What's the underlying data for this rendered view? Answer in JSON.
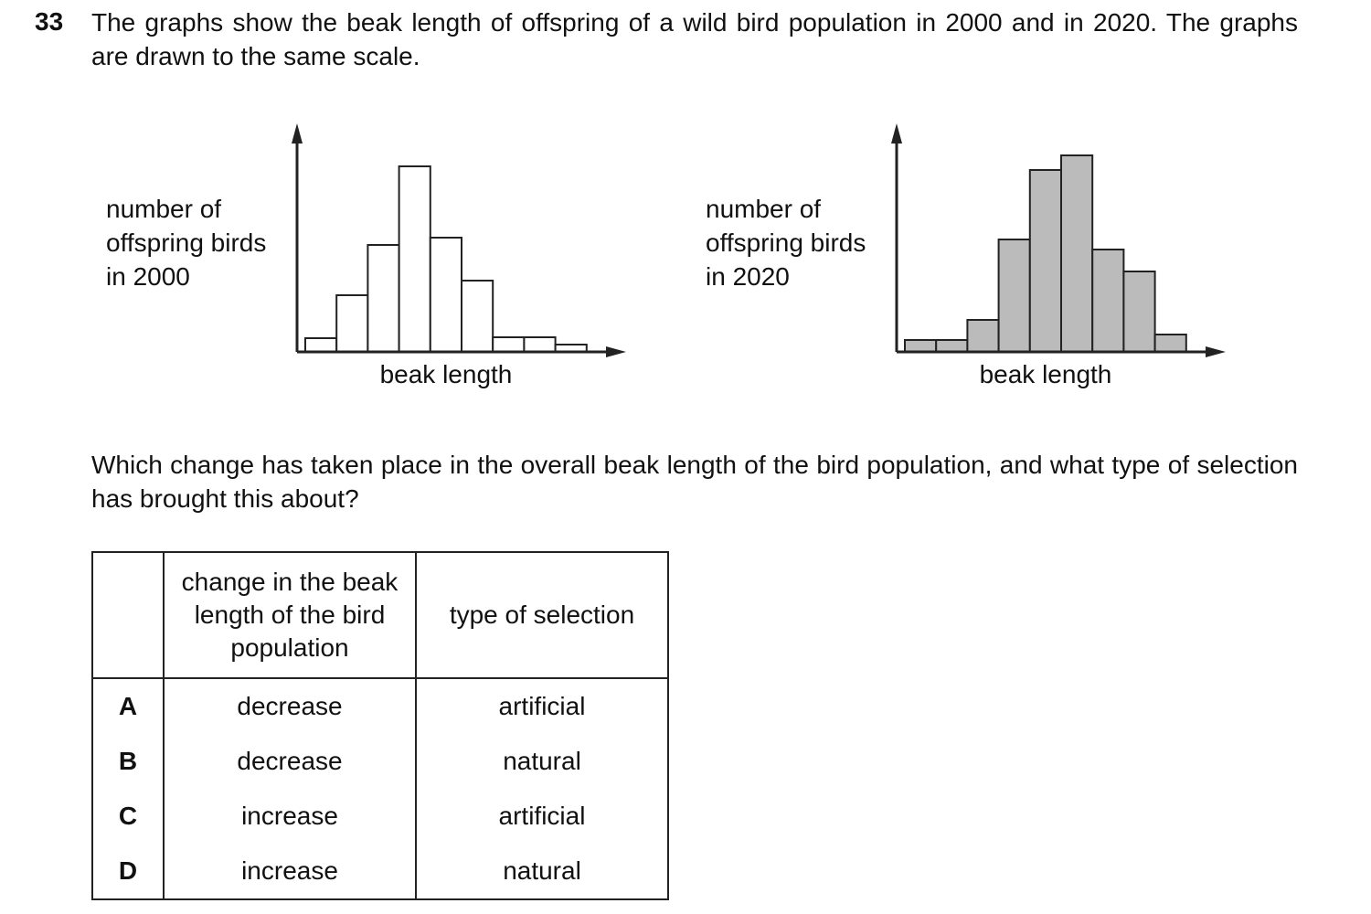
{
  "question": {
    "number": "33",
    "text": "The graphs show the beak length of offspring of a wild bird population in 2000 and in 2020. The graphs are drawn to the same scale.",
    "prompt": "Which change has taken place in the overall beak length of the bird population, and what type of selection has brought this about?"
  },
  "chart_data": [
    {
      "type": "bar",
      "y_label": "number of\noffspring birds\nin 2000",
      "x_label": "beak length",
      "categories": [
        null,
        null,
        null,
        null,
        null,
        null,
        null,
        null,
        null
      ],
      "values": [
        15,
        62,
        117,
        203,
        125,
        78,
        16,
        16,
        8
      ],
      "color": "#ffffff",
      "ylim": [
        0,
        250
      ]
    },
    {
      "type": "bar",
      "y_label": "number of\noffspring birds\nin 2020",
      "x_label": "beak length",
      "categories": [
        null,
        null,
        null,
        null,
        null,
        null,
        null,
        null,
        null
      ],
      "values": [
        13,
        13,
        35,
        123,
        199,
        215,
        112,
        88,
        19
      ],
      "color": "#bbbbbb",
      "ylim": [
        0,
        250
      ]
    }
  ],
  "table": {
    "header": [
      "change in the beak length of the bird population",
      "type of selection"
    ],
    "rows": [
      [
        "A",
        "decrease",
        "artificial"
      ],
      [
        "B",
        "decrease",
        "natural"
      ],
      [
        "C",
        "increase",
        "artificial"
      ],
      [
        "D",
        "increase",
        "natural"
      ]
    ]
  }
}
